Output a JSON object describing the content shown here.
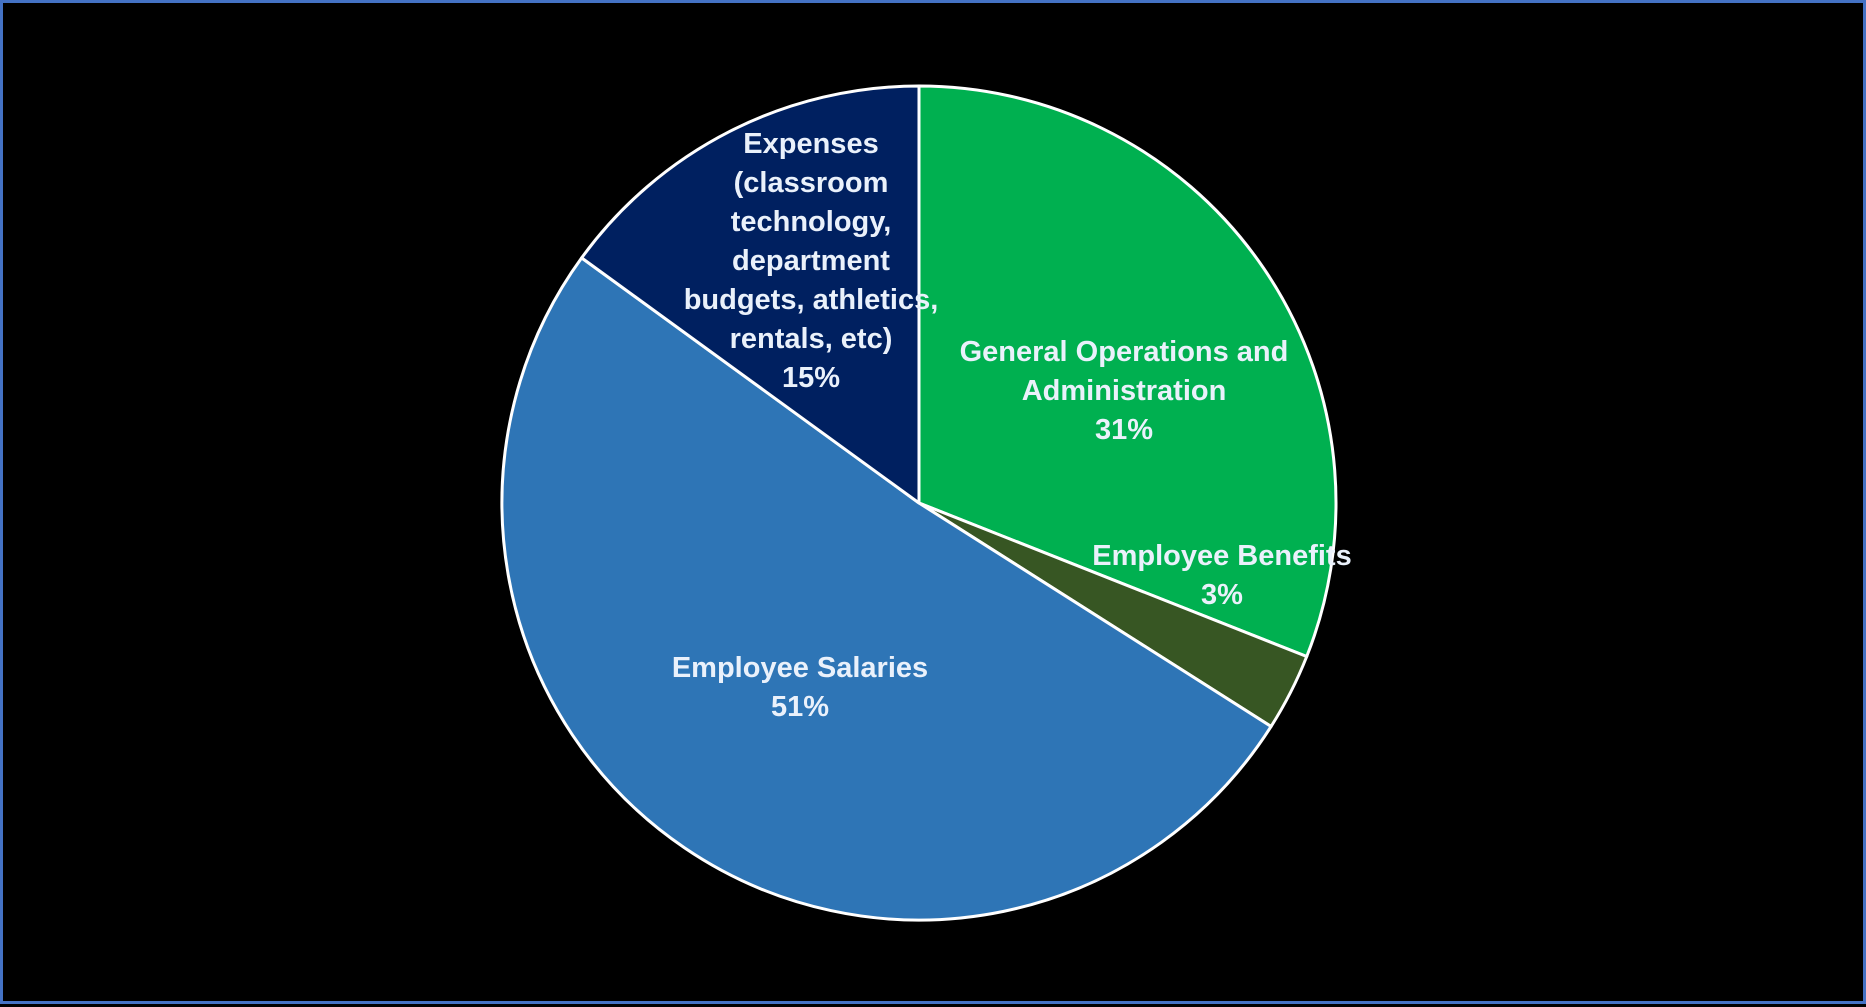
{
  "chart_data": {
    "type": "pie",
    "title": "",
    "start_angle_deg": 0,
    "direction": "clockwise",
    "legend": "none",
    "slices": [
      {
        "name": "General Operations and Administration",
        "value": 31,
        "label_lines": [
          "General Operations and",
          "Administration"
        ],
        "percent_label": "31%",
        "color": "#00b050"
      },
      {
        "name": "Employee Benefits",
        "value": 3,
        "label_lines": [
          "Employee Benefits"
        ],
        "percent_label": "3%",
        "color": "#375623"
      },
      {
        "name": "Employee Salaries",
        "value": 51,
        "label_lines": [
          "Employee Salaries"
        ],
        "percent_label": "51%",
        "color": "#2e75b6"
      },
      {
        "name": "Expenses (classroom technology, department budgets, athletics, rentals, etc)",
        "value": 15,
        "label_lines": [
          "Expenses",
          "(classroom",
          "technology,",
          "department",
          "budgets, athletics,",
          "rentals, etc)"
        ],
        "percent_label": "15%",
        "color": "#002060"
      }
    ]
  },
  "colors": {
    "background": "#000000",
    "frame_border": "#4472c4",
    "slice_border": "#ffffff",
    "label_text": "#eaf1fb"
  }
}
